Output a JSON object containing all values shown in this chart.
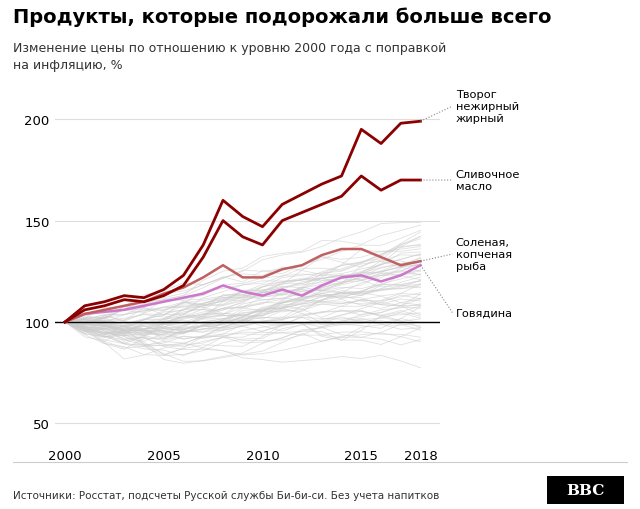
{
  "title": "Продукты, которые подорожали больше всего",
  "subtitle": "Изменение цены по отношению к уровню 2000 года с поправкой\nна инфляцию, %",
  "source": "Источники: Росстат, подсчеты Русской службы Би-би-си. Без учета напитков",
  "years": [
    2000,
    2001,
    2002,
    2003,
    2004,
    2005,
    2006,
    2007,
    2008,
    2009,
    2010,
    2011,
    2012,
    2013,
    2014,
    2015,
    2016,
    2017,
    2018
  ],
  "tvorog_nezhirny": [
    100,
    108,
    110,
    113,
    112,
    116,
    123,
    138,
    160,
    152,
    147,
    158,
    163,
    168,
    172,
    195,
    188,
    198,
    199
  ],
  "slivochnoe_maslo": [
    100,
    106,
    108,
    111,
    110,
    113,
    118,
    132,
    150,
    142,
    138,
    150,
    154,
    158,
    162,
    172,
    165,
    170,
    170
  ],
  "solenaya_ryba": [
    100,
    104,
    106,
    108,
    110,
    114,
    117,
    122,
    128,
    122,
    122,
    126,
    128,
    133,
    136,
    136,
    132,
    128,
    130
  ],
  "govyadina": [
    100,
    104,
    105,
    106,
    108,
    110,
    112,
    114,
    118,
    115,
    113,
    116,
    113,
    118,
    122,
    123,
    120,
    123,
    128
  ],
  "background_color": "#ffffff",
  "grey_color": "#cccccc",
  "dark_red": "#8B0000",
  "salmon_red": "#C06060",
  "violet": "#CC77CC",
  "ylim": [
    40,
    215
  ],
  "yticks": [
    50,
    100,
    150,
    200
  ],
  "xticks": [
    2000,
    2005,
    2010,
    2015,
    2018
  ]
}
